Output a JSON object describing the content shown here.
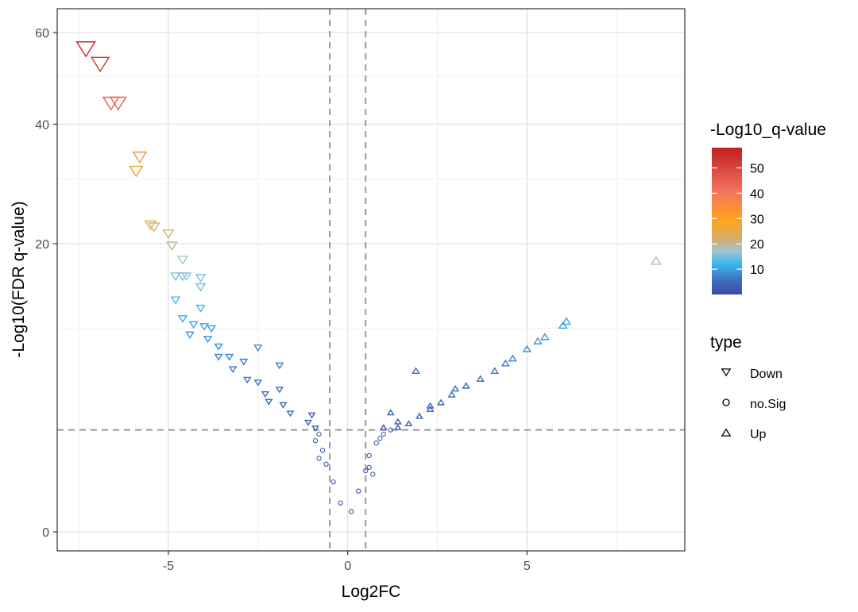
{
  "chart_data": {
    "type": "scatter",
    "title": "",
    "xlabel": "Log2FC",
    "ylabel": "-Log10(FDR q-value)",
    "xlim": [
      -8.1,
      9.4
    ],
    "x_ticks": [
      -5,
      0,
      5
    ],
    "y_ticks": [
      0,
      20,
      40,
      60
    ],
    "y_scale": "sqrt",
    "grid": true,
    "thresholds": {
      "log2fc": [
        -0.5,
        0.5
      ],
      "neg_log10_q": 2.5
    },
    "legend_position": "right",
    "color_legend": {
      "title": "-Log10_q-value",
      "ticks": [
        10,
        20,
        30,
        40,
        50
      ],
      "range": [
        0,
        58
      ],
      "stops": [
        {
          "v": 0,
          "c": "#3b4ba8"
        },
        {
          "v": 6,
          "c": "#3f72c0"
        },
        {
          "v": 12,
          "c": "#38b6ea"
        },
        {
          "v": 17,
          "c": "#9fc4d4"
        },
        {
          "v": 22,
          "c": "#d2ae6a"
        },
        {
          "v": 29,
          "c": "#ffa41a"
        },
        {
          "v": 40,
          "c": "#f2785c"
        },
        {
          "v": 58,
          "c": "#c41e24"
        }
      ]
    },
    "shape_legend": {
      "title": "type",
      "entries": [
        {
          "label": "Down",
          "shape": "triangle-down"
        },
        {
          "label": "no.Sig",
          "shape": "circle"
        },
        {
          "label": "Up",
          "shape": "triangle-up"
        }
      ]
    },
    "series": [
      {
        "name": "Down",
        "shape": "triangle-down",
        "points": [
          [
            -7.3,
            56.5
          ],
          [
            -6.9,
            53.0
          ],
          [
            -6.6,
            44.5
          ],
          [
            -6.4,
            44.5
          ],
          [
            -5.8,
            34.0
          ],
          [
            -5.9,
            31.5
          ],
          [
            -5.5,
            22.8
          ],
          [
            -5.4,
            22.5
          ],
          [
            -5.0,
            21.5
          ],
          [
            -4.9,
            19.8
          ],
          [
            -4.6,
            17.9
          ],
          [
            -4.8,
            15.8
          ],
          [
            -4.6,
            15.8
          ],
          [
            -4.5,
            15.8
          ],
          [
            -4.1,
            15.6
          ],
          [
            -4.1,
            14.5
          ],
          [
            -4.8,
            13.0
          ],
          [
            -4.1,
            12.1
          ],
          [
            -4.6,
            11.0
          ],
          [
            -4.3,
            10.4
          ],
          [
            -4.0,
            10.2
          ],
          [
            -3.8,
            10.0
          ],
          [
            -4.4,
            9.4
          ],
          [
            -3.9,
            9.0
          ],
          [
            -3.6,
            8.3
          ],
          [
            -2.5,
            8.2
          ],
          [
            -3.6,
            7.4
          ],
          [
            -3.3,
            7.4
          ],
          [
            -2.9,
            7.0
          ],
          [
            -1.9,
            6.7
          ],
          [
            -3.2,
            6.4
          ],
          [
            -2.8,
            5.6
          ],
          [
            -2.5,
            5.4
          ],
          [
            -1.9,
            4.9
          ],
          [
            -2.3,
            4.6
          ],
          [
            -2.2,
            4.1
          ],
          [
            -1.8,
            3.9
          ],
          [
            -1.6,
            3.4
          ],
          [
            -1.0,
            3.3
          ],
          [
            -1.1,
            2.9
          ],
          [
            -0.9,
            2.6
          ]
        ]
      },
      {
        "name": "no.Sig",
        "shape": "circle",
        "points": [
          [
            -0.8,
            2.3
          ],
          [
            -0.9,
            2.0
          ],
          [
            -0.7,
            1.6
          ],
          [
            -0.8,
            1.3
          ],
          [
            -0.6,
            1.1
          ],
          [
            -0.4,
            0.6
          ],
          [
            -0.2,
            0.2
          ],
          [
            0.1,
            0.1
          ],
          [
            0.3,
            0.4
          ],
          [
            0.5,
            0.9
          ],
          [
            0.6,
            1.4
          ],
          [
            0.8,
            1.9
          ],
          [
            0.9,
            2.1
          ],
          [
            1.0,
            2.3
          ],
          [
            1.2,
            2.5
          ],
          [
            0.6,
            1.0
          ],
          [
            0.7,
            0.8
          ]
        ]
      },
      {
        "name": "Up",
        "shape": "triangle-up",
        "points": [
          [
            8.6,
            17.6
          ],
          [
            6.1,
            10.6
          ],
          [
            6.0,
            10.2
          ],
          [
            5.5,
            9.1
          ],
          [
            5.3,
            8.7
          ],
          [
            5.0,
            8.0
          ],
          [
            4.6,
            7.2
          ],
          [
            4.4,
            6.8
          ],
          [
            4.1,
            6.2
          ],
          [
            3.7,
            5.6
          ],
          [
            3.3,
            5.1
          ],
          [
            2.9,
            4.5
          ],
          [
            2.6,
            4.0
          ],
          [
            2.3,
            3.6
          ],
          [
            2.0,
            3.2
          ],
          [
            1.7,
            2.8
          ],
          [
            1.4,
            2.6
          ],
          [
            1.9,
            6.2
          ],
          [
            3.0,
            4.9
          ],
          [
            2.3,
            3.8
          ],
          [
            1.2,
            3.4
          ],
          [
            1.4,
            2.9
          ],
          [
            1.0,
            2.6
          ]
        ]
      }
    ]
  }
}
